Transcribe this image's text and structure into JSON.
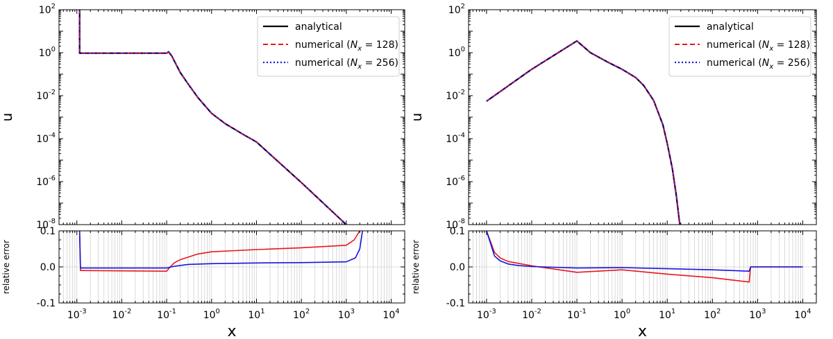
{
  "colors": {
    "analytical": "#000000",
    "numerical_128": "#e8161b",
    "numerical_256": "#1414e0",
    "error_128": "#e8161b",
    "error_256": "#1414e0"
  },
  "legend": {
    "analytical": "analytical",
    "numerical_128_prefix": "numerical (",
    "numerical_128_sym": "N",
    "numerical_128_sub": "x",
    "numerical_128_suffix": " = 128)",
    "numerical_256_prefix": "numerical (",
    "numerical_256_sym": "N",
    "numerical_256_sub": "x",
    "numerical_256_suffix": " = 256)"
  },
  "chart_data": [
    {
      "type": "line",
      "panel": "top-left",
      "xlabel": "",
      "ylabel": "u",
      "xscale": "log",
      "yscale": "log",
      "xlim": [
        0.0004,
        20000
      ],
      "ylim": [
        1e-08,
        100
      ],
      "ytick_exponents": [
        -8,
        -6,
        -4,
        -2,
        0,
        2
      ],
      "legend_placement": "top-right",
      "series": [
        {
          "name": "analytical",
          "x": [
            0.00115,
            0.00115,
            0.1,
            0.11,
            0.13,
            0.16,
            0.2,
            0.3,
            0.5,
            1,
            2,
            5,
            10,
            100,
            1000
          ],
          "y": [
            100,
            0.95,
            0.95,
            1.1,
            0.7,
            0.3,
            0.12,
            0.035,
            0.008,
            0.0015,
            0.0005,
            0.00016,
            7e-05,
            9e-07,
            1e-08
          ]
        },
        {
          "name": "numerical (Nx = 128)",
          "x": [
            0.00115,
            0.00115,
            0.1,
            0.11,
            0.13,
            0.16,
            0.2,
            0.3,
            0.5,
            1,
            2,
            5,
            10,
            100,
            1000
          ],
          "y": [
            100,
            0.95,
            0.95,
            1.1,
            0.7,
            0.3,
            0.12,
            0.035,
            0.008,
            0.0015,
            0.0005,
            0.00016,
            7e-05,
            9e-07,
            1e-08
          ]
        },
        {
          "name": "numerical (Nx = 256)",
          "x": [
            0.00115,
            0.00115,
            0.1,
            0.11,
            0.13,
            0.16,
            0.2,
            0.3,
            0.5,
            1,
            2,
            5,
            10,
            100,
            1000
          ],
          "y": [
            100,
            0.95,
            0.95,
            1.1,
            0.7,
            0.3,
            0.12,
            0.035,
            0.008,
            0.0015,
            0.0005,
            0.00016,
            7e-05,
            9e-07,
            1e-08
          ]
        }
      ]
    },
    {
      "type": "line",
      "panel": "bottom-left",
      "xlabel": "x",
      "ylabel": "relative error",
      "xscale": "log",
      "xlim": [
        0.0004,
        20000
      ],
      "ylim": [
        -0.1,
        0.1
      ],
      "yticks": [
        "0.1",
        "0.0",
        "-0.1"
      ],
      "xtick_exponents": [
        -3,
        -2,
        -1,
        0,
        1,
        2,
        3,
        4
      ],
      "grid": true,
      "series": [
        {
          "name": "numerical (Nx = 128)",
          "x": [
            0.00115,
            0.0012,
            0.0013,
            0.1,
            0.12,
            0.15,
            0.2,
            0.5,
            1,
            10,
            100,
            1000,
            1500,
            2000
          ],
          "y": [
            0.1,
            -0.01,
            -0.01,
            -0.012,
            0.0,
            0.012,
            0.02,
            0.036,
            0.042,
            0.048,
            0.053,
            0.06,
            0.075,
            0.1
          ]
        },
        {
          "name": "numerical (Nx = 256)",
          "x": [
            0.00115,
            0.0012,
            0.0013,
            0.1,
            0.15,
            0.3,
            1,
            10,
            100,
            1000,
            1600,
            2000,
            2300
          ],
          "y": [
            0.1,
            -0.003,
            -0.003,
            -0.003,
            0.002,
            0.007,
            0.009,
            0.011,
            0.012,
            0.014,
            0.025,
            0.05,
            0.1
          ]
        }
      ]
    },
    {
      "type": "line",
      "panel": "top-right",
      "xlabel": "",
      "ylabel": "u",
      "xscale": "log",
      "yscale": "log",
      "xlim": [
        0.0004,
        20000
      ],
      "ylim": [
        1e-08,
        100
      ],
      "ytick_exponents": [
        -8,
        -6,
        -4,
        -2,
        0,
        2
      ],
      "legend_placement": "top-right",
      "series": [
        {
          "name": "analytical",
          "x": [
            0.001,
            0.01,
            0.1,
            0.2,
            0.5,
            1,
            2,
            3,
            5,
            8,
            10,
            13,
            16,
            19
          ],
          "y": [
            0.0055,
            0.17,
            3.5,
            1.0,
            0.35,
            0.17,
            0.07,
            0.03,
            0.006,
            0.00045,
            6e-05,
            4e-06,
            2e-07,
            1e-08
          ]
        },
        {
          "name": "numerical (Nx = 128)",
          "x": [
            0.001,
            0.01,
            0.1,
            0.2,
            0.5,
            1,
            2,
            3,
            5,
            8,
            10,
            13,
            16,
            19
          ],
          "y": [
            0.0055,
            0.17,
            3.5,
            1.0,
            0.35,
            0.17,
            0.07,
            0.03,
            0.006,
            0.00045,
            6e-05,
            4e-06,
            2e-07,
            1e-08
          ]
        },
        {
          "name": "numerical (Nx = 256)",
          "x": [
            0.001,
            0.01,
            0.1,
            0.2,
            0.5,
            1,
            2,
            3,
            5,
            8,
            10,
            13,
            16,
            19
          ],
          "y": [
            0.0055,
            0.17,
            3.5,
            1.0,
            0.35,
            0.17,
            0.07,
            0.03,
            0.006,
            0.00045,
            6e-05,
            4e-06,
            2e-07,
            1e-08
          ]
        }
      ]
    },
    {
      "type": "line",
      "panel": "bottom-right",
      "xlabel": "x",
      "ylabel": "relative error",
      "xscale": "log",
      "xlim": [
        0.0004,
        20000
      ],
      "ylim": [
        -0.1,
        0.1
      ],
      "yticks": [
        "0.1",
        "0.0",
        "-0.1"
      ],
      "xtick_exponents": [
        -3,
        -2,
        -1,
        0,
        1,
        2,
        3,
        4
      ],
      "grid": true,
      "series": [
        {
          "name": "numerical (Nx = 128)",
          "x": [
            0.001,
            0.0015,
            0.002,
            0.003,
            0.005,
            0.01,
            0.1,
            1,
            10,
            100,
            650,
            700,
            10000
          ],
          "y": [
            0.1,
            0.04,
            0.025,
            0.015,
            0.01,
            0.003,
            -0.015,
            -0.008,
            -0.02,
            -0.03,
            -0.042,
            0.0,
            0.0
          ]
        },
        {
          "name": "numerical (Nx = 256)",
          "x": [
            0.001,
            0.0015,
            0.002,
            0.003,
            0.005,
            0.01,
            0.1,
            1,
            10,
            100,
            650,
            700,
            10000
          ],
          "y": [
            0.1,
            0.03,
            0.017,
            0.008,
            0.004,
            0.001,
            -0.003,
            -0.002,
            -0.005,
            -0.008,
            -0.012,
            0.0,
            0.0
          ]
        }
      ]
    }
  ]
}
